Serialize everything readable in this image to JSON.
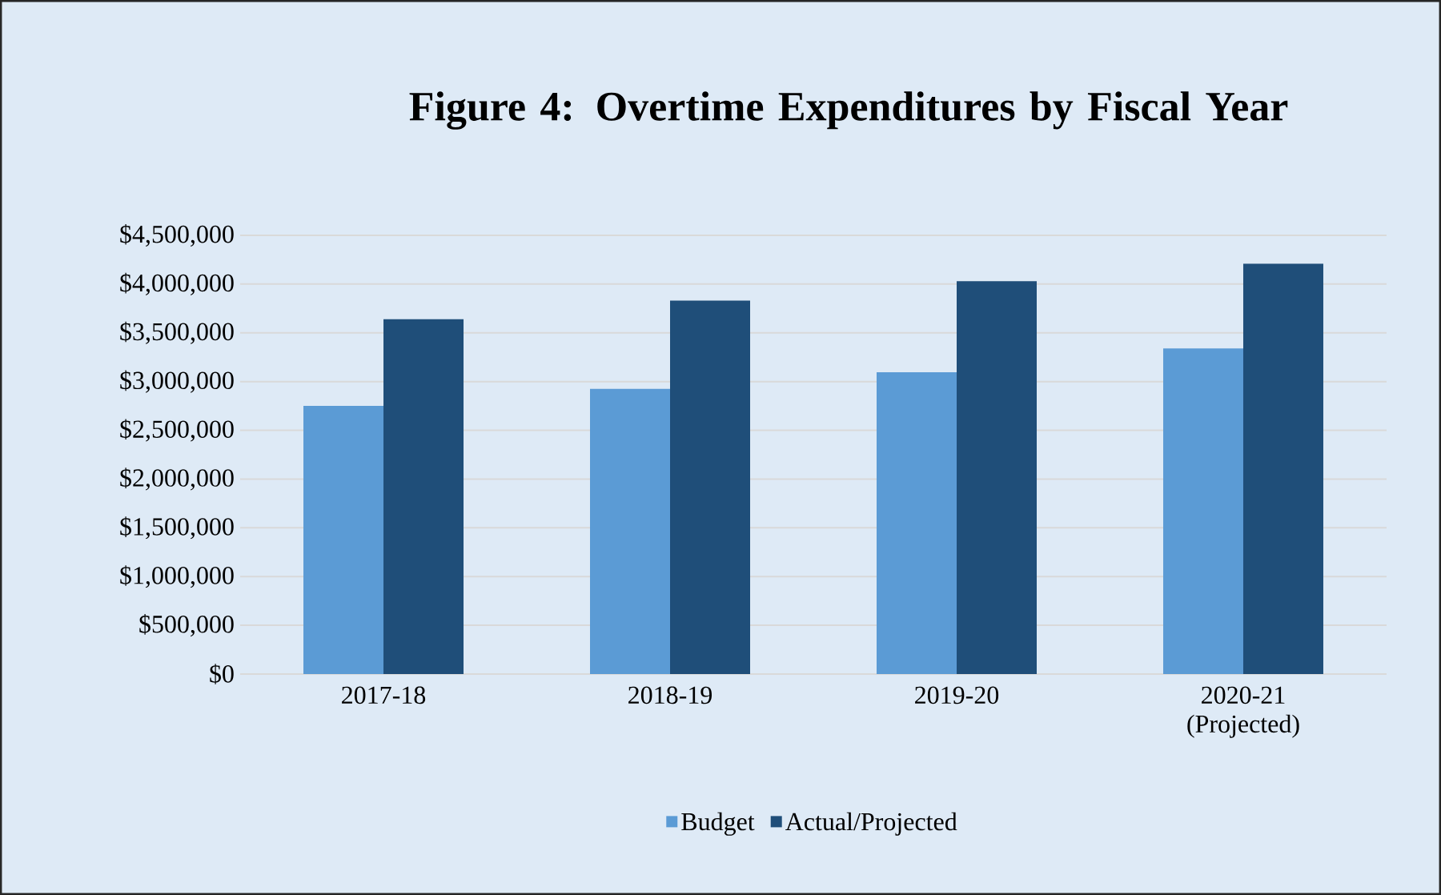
{
  "chart_data": {
    "type": "bar",
    "title": "Figure 4: Overtime Expenditures by Fiscal Year",
    "categories": [
      "2017-18",
      "2018-19",
      "2019-20",
      "2020-21 (Projected)"
    ],
    "series": [
      {
        "name": "Budget",
        "color": "#5b9bd5",
        "values": [
          2750000,
          2925000,
          3095000,
          3340000
        ]
      },
      {
        "name": "Actual/Projected",
        "color": "#1f4e79",
        "values": [
          3640000,
          3830000,
          4030000,
          4210000
        ]
      }
    ],
    "ylim": [
      0,
      4500000
    ],
    "yticks": [
      {
        "value": 0,
        "label": "$0"
      },
      {
        "value": 500000,
        "label": "$500,000"
      },
      {
        "value": 1000000,
        "label": "$1,000,000"
      },
      {
        "value": 1500000,
        "label": "$1,500,000"
      },
      {
        "value": 2000000,
        "label": "$2,000,000"
      },
      {
        "value": 2500000,
        "label": "$2,500,000"
      },
      {
        "value": 3000000,
        "label": "$3,000,000"
      },
      {
        "value": 3500000,
        "label": "$3,500,000"
      },
      {
        "value": 4000000,
        "label": "$4,000,000"
      },
      {
        "value": 4500000,
        "label": "$4,500,000"
      }
    ],
    "grid": "y",
    "legend": "bottom"
  }
}
